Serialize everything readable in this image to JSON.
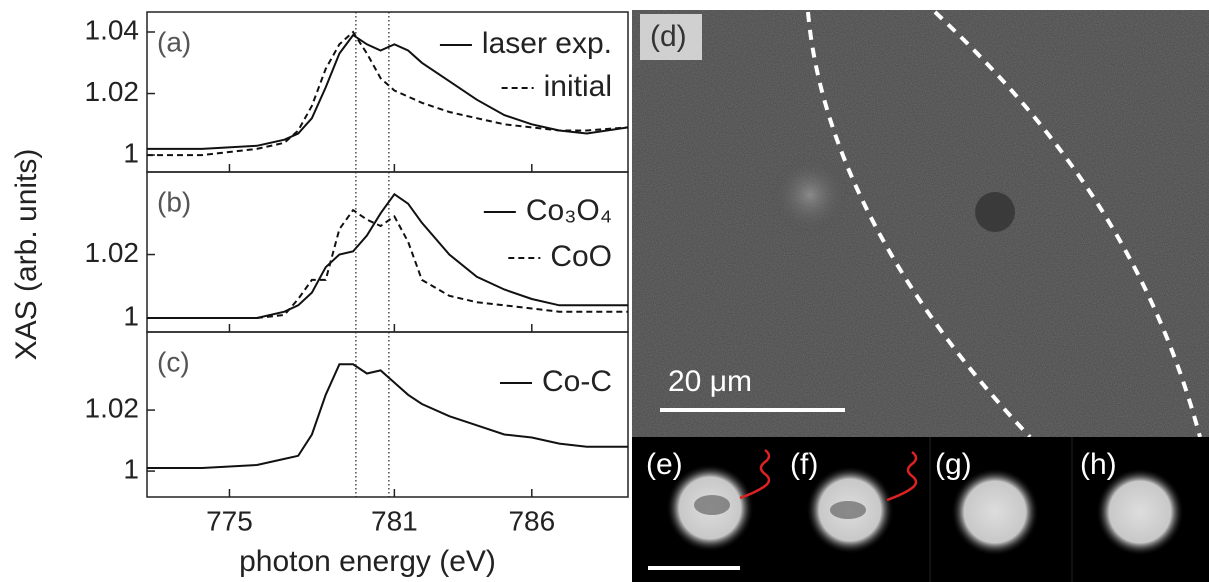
{
  "chart_data": [
    {
      "type": "line",
      "panel_label": "(a)",
      "x": [
        772,
        774,
        776,
        777,
        777.5,
        778,
        778.5,
        779,
        779.5,
        780,
        780.5,
        781,
        781.5,
        782,
        783,
        784,
        785,
        786,
        787,
        788,
        789.5
      ],
      "series": [
        {
          "name": "laser exp.",
          "style": "solid",
          "color": "#111111",
          "values": [
            1.002,
            1.002,
            1.003,
            1.005,
            1.007,
            1.012,
            1.022,
            1.033,
            1.039,
            1.036,
            1.034,
            1.036,
            1.034,
            1.03,
            1.024,
            1.018,
            1.013,
            1.01,
            1.008,
            1.007,
            1.009
          ]
        },
        {
          "name": "initial",
          "style": "dashed",
          "color": "#111111",
          "values": [
            1.0,
            1.0,
            1.002,
            1.004,
            1.008,
            1.016,
            1.028,
            1.036,
            1.04,
            1.033,
            1.025,
            1.021,
            1.019,
            1.017,
            1.014,
            1.012,
            1.01,
            1.009,
            1.008,
            1.008,
            1.009
          ]
        }
      ],
      "xlim": [
        772,
        789.5
      ],
      "ylim": [
        0.9945,
        1.0465
      ],
      "yticks": [
        1.0,
        1.02,
        1.04
      ],
      "vlines": [
        779.6,
        780.8
      ]
    },
    {
      "type": "line",
      "panel_label": "(b)",
      "ylabel": "XAS (arb. units)",
      "x": [
        772,
        774,
        776,
        777,
        777.5,
        778,
        778.5,
        779,
        779.5,
        780,
        780.5,
        781,
        781.5,
        782,
        783,
        784,
        785,
        786,
        787,
        788,
        789.5
      ],
      "series": [
        {
          "name": "Co₃O₄",
          "style": "solid",
          "color": "#111111",
          "values": [
            1.0,
            1.0,
            1.0,
            1.002,
            1.004,
            1.008,
            1.016,
            1.02,
            1.021,
            1.026,
            1.033,
            1.039,
            1.036,
            1.03,
            1.02,
            1.013,
            1.009,
            1.006,
            1.004,
            1.004,
            1.004
          ]
        },
        {
          "name": "CoO",
          "style": "dashed",
          "color": "#111111",
          "values": [
            1.0,
            1.0,
            1.0,
            1.001,
            1.006,
            1.012,
            1.012,
            1.028,
            1.034,
            1.031,
            1.029,
            1.032,
            1.024,
            1.012,
            1.007,
            1.005,
            1.004,
            1.003,
            1.002,
            1.002,
            1.002
          ]
        }
      ],
      "xlim": [
        772,
        789.5
      ],
      "ylim": [
        0.9956,
        1.046
      ],
      "yticks": [
        1.0,
        1.02
      ],
      "vlines": [
        779.6,
        780.8
      ]
    },
    {
      "type": "line",
      "panel_label": "(c)",
      "xlabel": "photon energy (eV)",
      "x": [
        772,
        774,
        776,
        777,
        777.5,
        778,
        778.5,
        779,
        779.5,
        780,
        780.5,
        781,
        781.5,
        782,
        783,
        784,
        785,
        786,
        787,
        788,
        789.5
      ],
      "series": [
        {
          "name": "Co-C",
          "style": "solid",
          "color": "#111111",
          "values": [
            1.001,
            1.001,
            1.002,
            1.004,
            1.005,
            1.012,
            1.025,
            1.035,
            1.035,
            1.032,
            1.033,
            1.029,
            1.025,
            1.022,
            1.018,
            1.015,
            1.012,
            1.011,
            1.009,
            1.008,
            1.008
          ]
        }
      ],
      "xlim": [
        772,
        789.5
      ],
      "ylim": [
        0.9915,
        1.0456
      ],
      "yticks": [
        1.0,
        1.02
      ],
      "xticks": [
        775,
        781,
        786
      ],
      "vlines": [
        779.6,
        780.8
      ]
    }
  ],
  "image_panels": {
    "main_label": "(d)",
    "scale_bar": "20 μm",
    "insets": [
      "(e)",
      "(f)",
      "(g)",
      "(h)"
    ]
  }
}
